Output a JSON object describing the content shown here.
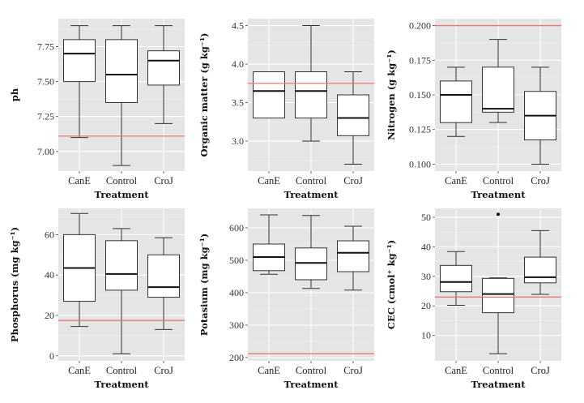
{
  "figure": {
    "x_axis_title": "Treatment",
    "categories": [
      "CanE",
      "Control",
      "CroJ"
    ]
  },
  "chart_data": [
    {
      "type": "box",
      "id": "ph",
      "title": "",
      "xlabel": "Treatment",
      "ylabel": "ph",
      "categories": [
        "CanE",
        "Control",
        "CroJ"
      ],
      "ylim": [
        6.86,
        7.95
      ],
      "yticks": [
        7.0,
        7.25,
        7.5,
        7.75
      ],
      "ytick_labels": [
        "7.00",
        "7.25",
        "7.50",
        "7.75"
      ],
      "boxes": [
        {
          "category": "CanE",
          "min": 7.1,
          "q1": 7.5,
          "median": 7.7,
          "q3": 7.8,
          "max": 7.9,
          "outliers": []
        },
        {
          "category": "Control",
          "min": 6.9,
          "q1": 7.35,
          "median": 7.55,
          "q3": 7.8,
          "max": 7.9,
          "outliers": []
        },
        {
          "category": "CroJ",
          "min": 7.2,
          "q1": 7.475,
          "median": 7.65,
          "q3": 7.72,
          "max": 7.9,
          "outliers": []
        }
      ],
      "reference_line": 7.11,
      "grid": true
    },
    {
      "type": "box",
      "id": "organic-matter",
      "title": "",
      "xlabel": "Treatment",
      "ylabel": "Organic matter (g kg⁻¹)",
      "categories": [
        "CanE",
        "Control",
        "CroJ"
      ],
      "ylim": [
        2.61,
        4.59
      ],
      "yticks": [
        3.0,
        3.5,
        4.0,
        4.5
      ],
      "ytick_labels": [
        "3.0",
        "3.5",
        "4.0",
        "4.5"
      ],
      "boxes": [
        {
          "category": "CanE",
          "min": 3.3,
          "q1": 3.3,
          "median": 3.65,
          "q3": 3.9,
          "max": 3.9,
          "outliers": []
        },
        {
          "category": "Control",
          "min": 3.0,
          "q1": 3.3,
          "median": 3.65,
          "q3": 3.9,
          "max": 4.5,
          "outliers": []
        },
        {
          "category": "CroJ",
          "min": 2.7,
          "q1": 3.07,
          "median": 3.3,
          "q3": 3.6,
          "max": 3.9,
          "outliers": []
        }
      ],
      "reference_line": 3.75,
      "grid": true
    },
    {
      "type": "box",
      "id": "nitrogen",
      "title": "",
      "xlabel": "Treatment",
      "ylabel": "Nitrogen (g kg⁻¹)",
      "categories": [
        "CanE",
        "Control",
        "CroJ"
      ],
      "ylim": [
        0.095,
        0.205
      ],
      "yticks": [
        0.1,
        0.125,
        0.15,
        0.175,
        0.2
      ],
      "ytick_labels": [
        "0.100",
        "0.125",
        "0.150",
        "0.175",
        "0.200"
      ],
      "boxes": [
        {
          "category": "CanE",
          "min": 0.12,
          "q1": 0.13,
          "median": 0.15,
          "q3": 0.16,
          "max": 0.17,
          "outliers": []
        },
        {
          "category": "Control",
          "min": 0.13,
          "q1": 0.1375,
          "median": 0.14,
          "q3": 0.17,
          "max": 0.19,
          "outliers": []
        },
        {
          "category": "CroJ",
          "min": 0.1,
          "q1": 0.1175,
          "median": 0.135,
          "q3": 0.1525,
          "max": 0.17,
          "outliers": []
        }
      ],
      "reference_line": 0.2,
      "grid": true
    },
    {
      "type": "box",
      "id": "phosphorus",
      "title": "",
      "xlabel": "Treatment",
      "ylabel": "Phosphorus (mg kg⁻¹)",
      "categories": [
        "CanE",
        "Control",
        "CroJ"
      ],
      "ylim": [
        -2.5,
        73
      ],
      "yticks": [
        0,
        20,
        40,
        60
      ],
      "ytick_labels": [
        "0",
        "20",
        "40",
        "60"
      ],
      "boxes": [
        {
          "category": "CanE",
          "min": 14.5,
          "q1": 27.0,
          "median": 43.5,
          "q3": 60.0,
          "max": 70.5,
          "outliers": []
        },
        {
          "category": "Control",
          "min": 1.0,
          "q1": 32.5,
          "median": 40.5,
          "q3": 57.0,
          "max": 63.0,
          "outliers": []
        },
        {
          "category": "CroJ",
          "min": 13.0,
          "q1": 29.0,
          "median": 34.0,
          "q3": 50.0,
          "max": 58.5,
          "outliers": []
        }
      ],
      "reference_line": 17.5,
      "grid": true
    },
    {
      "type": "box",
      "id": "potassium",
      "title": "",
      "xlabel": "Treatment",
      "ylabel": "Potasium (mg kg⁻¹)",
      "categories": [
        "CanE",
        "Control",
        "CroJ"
      ],
      "ylim": [
        190,
        660
      ],
      "yticks": [
        200,
        300,
        400,
        500,
        600
      ],
      "ytick_labels": [
        "200",
        "300",
        "400",
        "500",
        "600"
      ],
      "boxes": [
        {
          "category": "CanE",
          "min": 457,
          "q1": 468,
          "median": 510,
          "q3": 550,
          "max": 640,
          "outliers": []
        },
        {
          "category": "Control",
          "min": 413,
          "q1": 440,
          "median": 492,
          "q3": 538,
          "max": 638,
          "outliers": []
        },
        {
          "category": "CroJ",
          "min": 408,
          "q1": 465,
          "median": 523,
          "q3": 560,
          "max": 605,
          "outliers": []
        }
      ],
      "reference_line": 212,
      "grid": true
    },
    {
      "type": "box",
      "id": "cec",
      "title": "",
      "xlabel": "Treatment",
      "ylabel": "CEC (cmol⁺ kg⁻¹)",
      "categories": [
        "CanE",
        "Control",
        "CroJ"
      ],
      "ylim": [
        1.4,
        53
      ],
      "yticks": [
        10,
        20,
        30,
        40,
        50
      ],
      "ytick_labels": [
        "10",
        "20",
        "30",
        "40",
        "50"
      ],
      "boxes": [
        {
          "category": "CanE",
          "min": 20.2,
          "q1": 24.8,
          "median": 28.1,
          "q3": 33.7,
          "max": 38.4,
          "outliers": []
        },
        {
          "category": "Control",
          "min": 3.8,
          "q1": 17.7,
          "median": 24.0,
          "q3": 29.3,
          "max": 29.5,
          "outliers": [
            51.0
          ]
        },
        {
          "category": "CroJ",
          "min": 23.9,
          "q1": 27.8,
          "median": 29.7,
          "q3": 36.5,
          "max": 45.5,
          "outliers": []
        }
      ],
      "reference_line": 23.0,
      "grid": true
    }
  ],
  "style": {
    "panel_bg": "#e5e5e5",
    "grid_major": "#ffffff",
    "grid_minor": "#f0f0f0",
    "box_fill": "#ffffff",
    "box_stroke": "#333333",
    "reference_line": "#e8797b"
  }
}
